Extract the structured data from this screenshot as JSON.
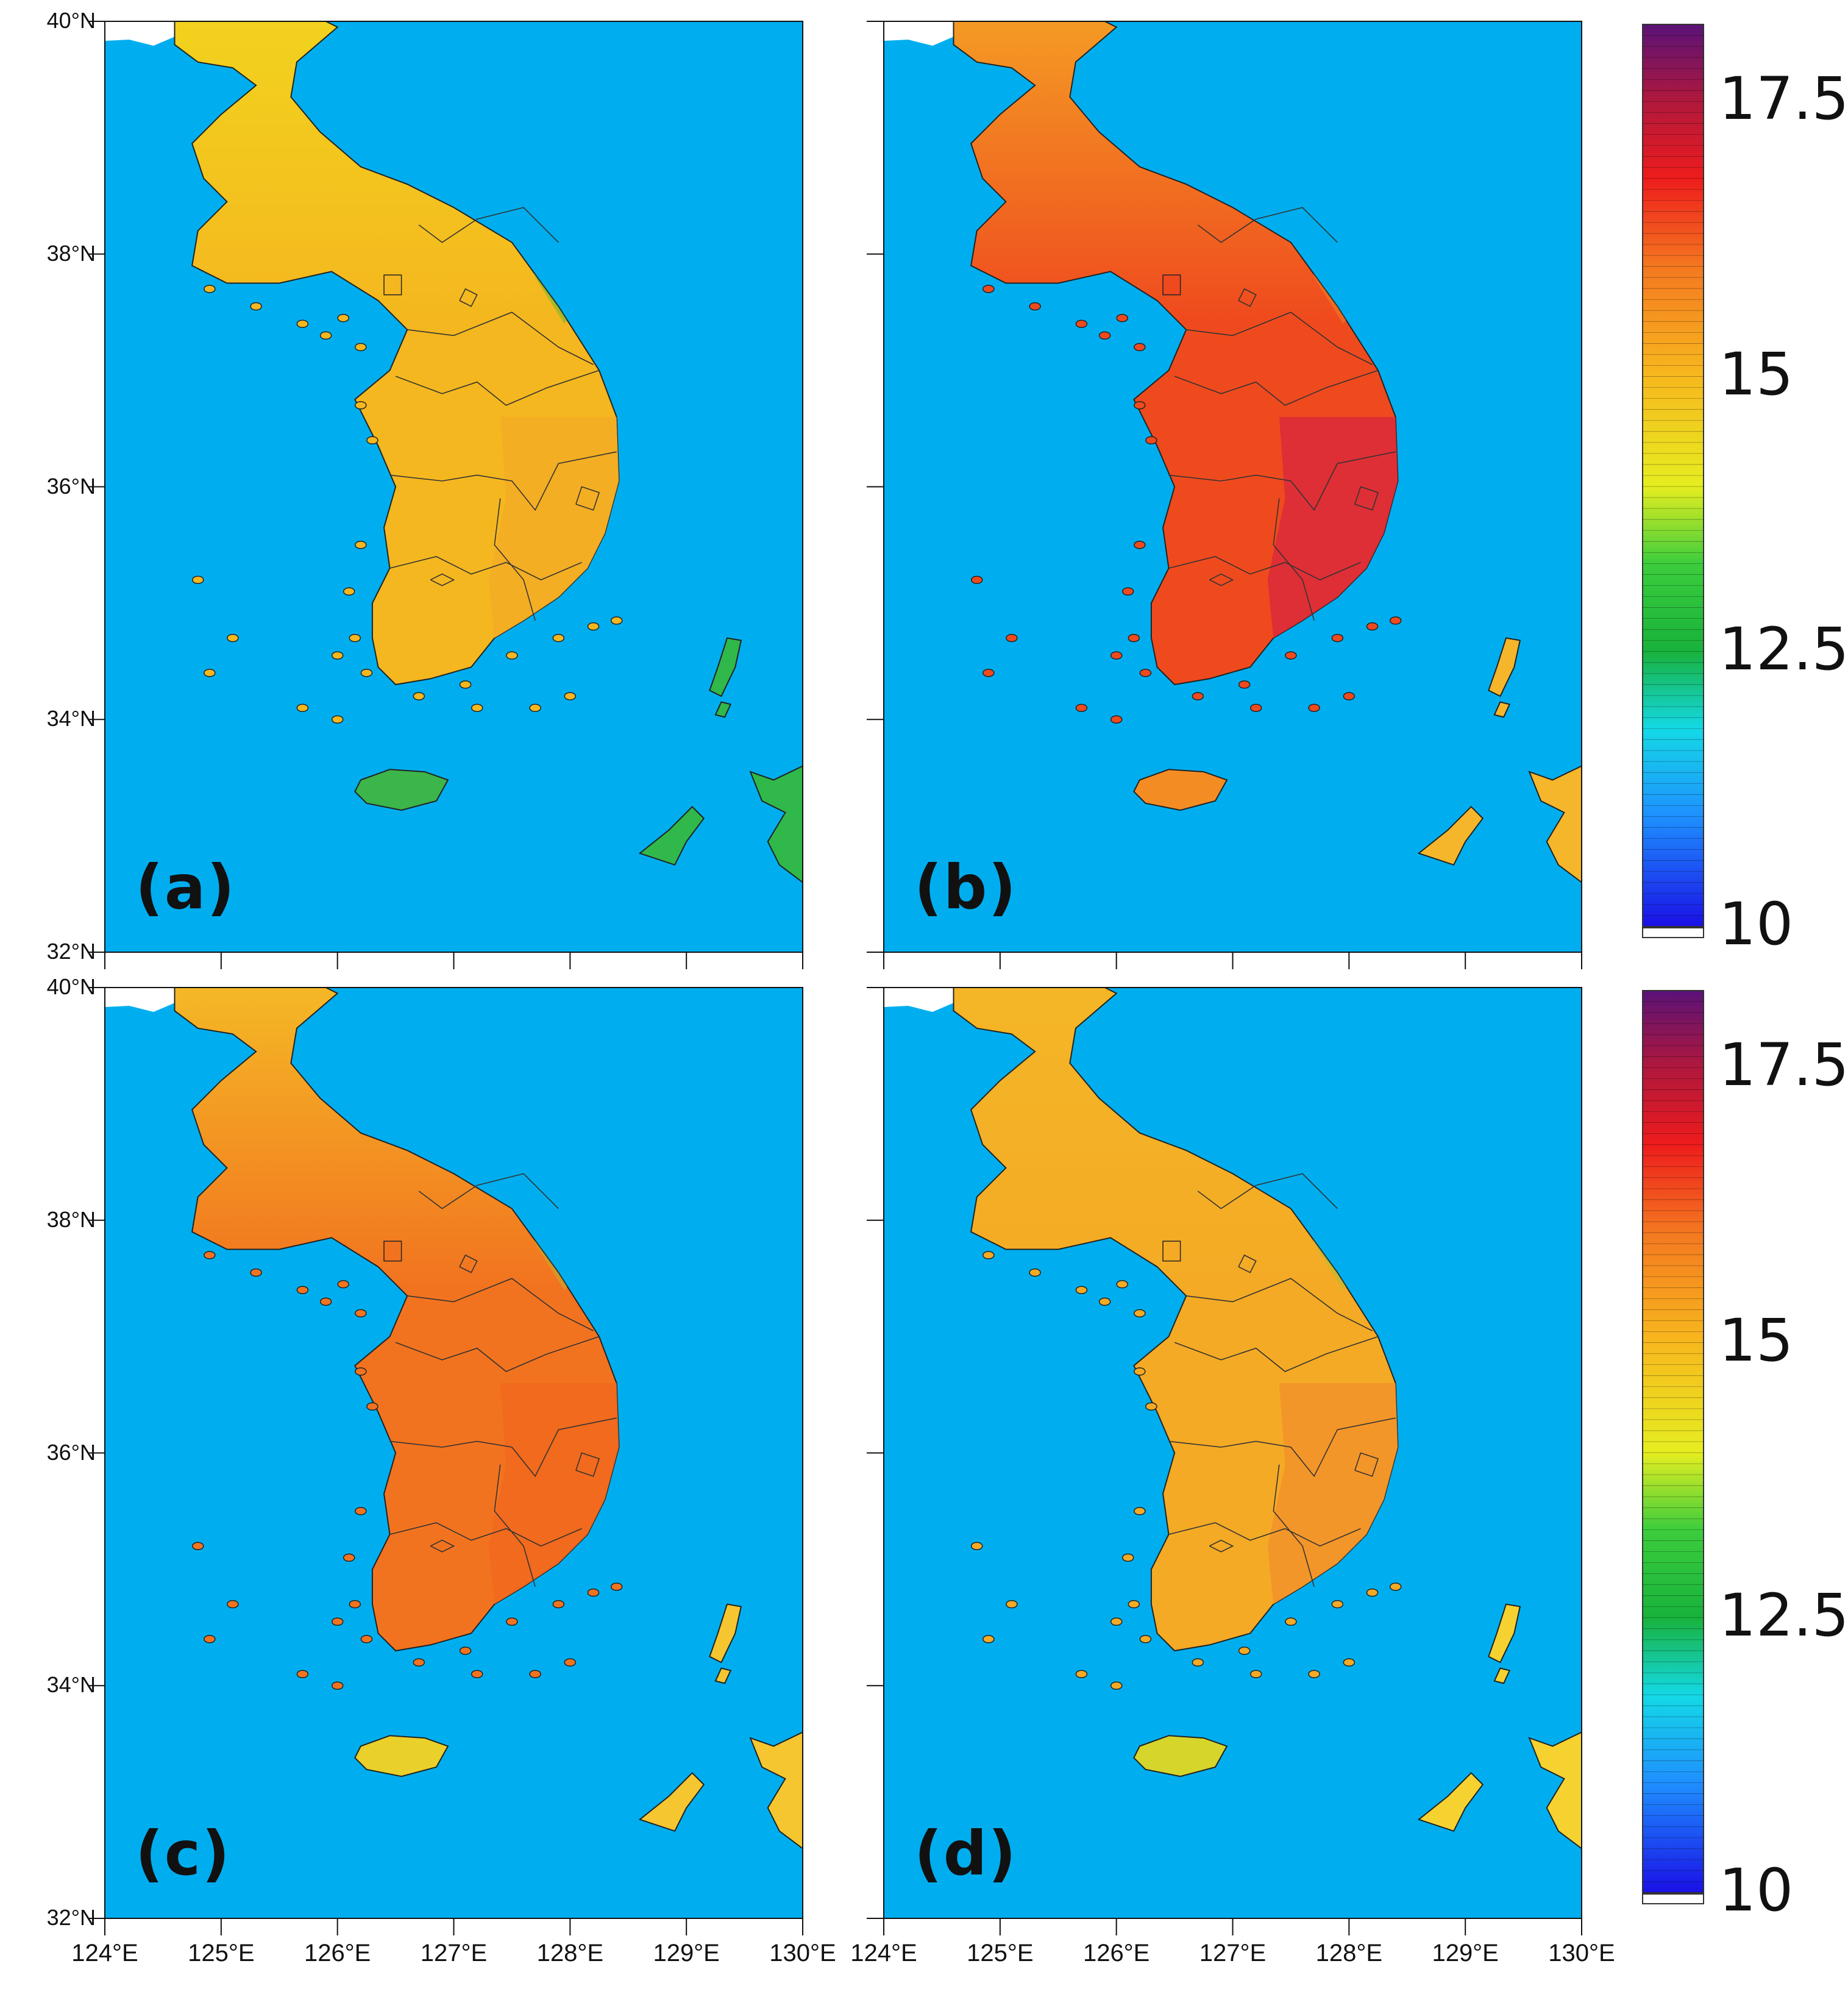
{
  "figure": {
    "panels": [
      {
        "id": "a",
        "label": "(a)",
        "fills": {
          "sea": "#00aeef",
          "north": "#f2d21e",
          "south": "#f4b71f",
          "southeast": "#f3ad26",
          "highland": "#26b53a",
          "jeju": "#3cb54a",
          "tsushima": "#30b84a"
        }
      },
      {
        "id": "b",
        "label": "(b)",
        "fills": {
          "sea": "#00aeef",
          "north": "#f49a24",
          "south": "#ef4a1e",
          "southeast": "#d92a3a",
          "highland": "#f2a12b",
          "jeju": "#f48c24",
          "tsushima": "#f6b62b"
        }
      },
      {
        "id": "c",
        "label": "(c)",
        "fills": {
          "sea": "#00aeef",
          "north": "#f4b826",
          "south": "#f2731f",
          "southeast": "#f1691d",
          "highland": "#a8d038",
          "jeju": "#e9d02a",
          "tsushima": "#f5c630"
        }
      },
      {
        "id": "d",
        "label": "(d)",
        "fills": {
          "sea": "#00aeef",
          "north": "#f4b626",
          "south": "#f4aa25",
          "southeast": "#f2932a",
          "highland": "#8ccc3c",
          "jeju": "#d6d52c",
          "tsushima": "#f6d231"
        }
      }
    ],
    "lat_ticks": [
      "40°N",
      "38°N",
      "36°N",
      "34°N",
      "32°N"
    ],
    "lon_ticks": [
      "124°E",
      "125°E",
      "126°E",
      "127°E",
      "128°E",
      "129°E",
      "130°E"
    ],
    "colorbar": {
      "range": [
        10,
        18.2
      ],
      "tick_values": [
        17.5,
        15,
        12.5,
        10
      ],
      "tick_labels": [
        "17.5",
        "15",
        "12.5",
        "10"
      ],
      "color_stops": [
        {
          "value": 10.0,
          "color": "#1a10e6"
        },
        {
          "value": 11.0,
          "color": "#1e90ff"
        },
        {
          "value": 11.8,
          "color": "#14d9e6"
        },
        {
          "value": 12.5,
          "color": "#18b23c"
        },
        {
          "value": 13.3,
          "color": "#3ccd3c"
        },
        {
          "value": 14.0,
          "color": "#e6ee20"
        },
        {
          "value": 15.0,
          "color": "#f7b81e"
        },
        {
          "value": 16.0,
          "color": "#f47820"
        },
        {
          "value": 16.8,
          "color": "#ee1c1c"
        },
        {
          "value": 17.5,
          "color": "#b0183c"
        },
        {
          "value": 18.2,
          "color": "#5a1278"
        }
      ]
    }
  }
}
